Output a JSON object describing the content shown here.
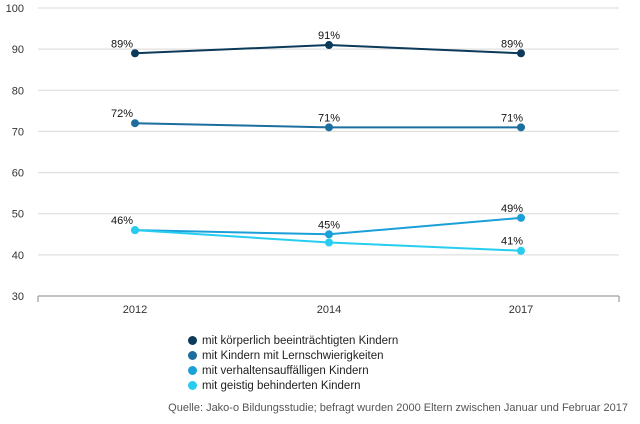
{
  "chart_data": {
    "type": "line",
    "categories": [
      "2012",
      "2014",
      "2017"
    ],
    "ylim": [
      30,
      100
    ],
    "yticks": [
      "30",
      "40",
      "50",
      "60",
      "70",
      "80",
      "90",
      "100"
    ],
    "grid": true,
    "legend_position": "bottom",
    "series": [
      {
        "name": "mit körperlich beeinträchtigten Kindern",
        "values": [
          89,
          91,
          89
        ],
        "labels": [
          "89%",
          "91%",
          "89%"
        ],
        "color": "#0c3a5a"
      },
      {
        "name": "mit Kindern mit Lernschwierigkeiten",
        "values": [
          72,
          71,
          71
        ],
        "labels": [
          "72%",
          "71%",
          "71%"
        ],
        "color": "#1b6e9e"
      },
      {
        "name": "mit verhaltensauffälligen Kindern",
        "values": [
          46,
          45,
          49
        ],
        "labels": [
          "46%",
          "45%",
          "49%"
        ],
        "color": "#1b9fd8"
      },
      {
        "name": "mit geistig behinderten Kindern",
        "values": [
          46,
          43,
          41
        ],
        "labels": [
          "",
          "",
          "41%"
        ],
        "color": "#27cdf0"
      }
    ]
  },
  "source": "Quelle: Jako-o Bildungsstudie; befragt wurden 2000 Eltern zwischen Januar und Februar 2017"
}
